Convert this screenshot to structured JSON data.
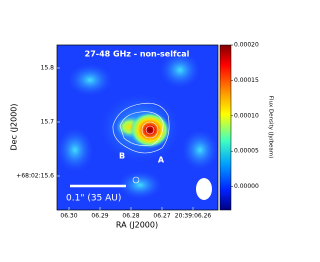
{
  "chart_data": {
    "type": "image",
    "title": "27-48 GHz - non-selfcal",
    "xlabel": "RA (J2000)",
    "ylabel": "Dec (J2000)",
    "colorbar_label": "Flux Density (Jy/beam)",
    "annotations": [
      "B",
      "A"
    ],
    "scale_bar": "0.1\" (35 AU)",
    "colormap": "jet",
    "xlim": [
      6.30387,
      6.25194
    ],
    "xticks": [
      {
        "value": 6.3,
        "label": "06.30"
      },
      {
        "value": 6.29,
        "label": "06.29"
      },
      {
        "value": 6.28,
        "label": "06.28"
      },
      {
        "value": 6.27,
        "label": "06.27"
      },
      {
        "value": 6.26,
        "label": "20:39:06.26"
      }
    ],
    "ylim": [
      15.537,
      15.8426
    ],
    "yticks": [
      {
        "value": 15.8,
        "label": "15.8"
      },
      {
        "value": 15.7,
        "label": "15.7"
      },
      {
        "value": 15.6,
        "label": "+68:02:15.6"
      }
    ],
    "clim": [
      -3.3e-05,
      0.0002
    ],
    "cticks": [
      {
        "value": 0.0002,
        "label": "0.00020"
      },
      {
        "value": 0.00015,
        "label": "0.00015"
      },
      {
        "value": 0.0001,
        "label": "0.00010"
      },
      {
        "value": 5e-05,
        "label": "0.00005"
      },
      {
        "value": 0,
        "label": "0.00000"
      }
    ]
  }
}
